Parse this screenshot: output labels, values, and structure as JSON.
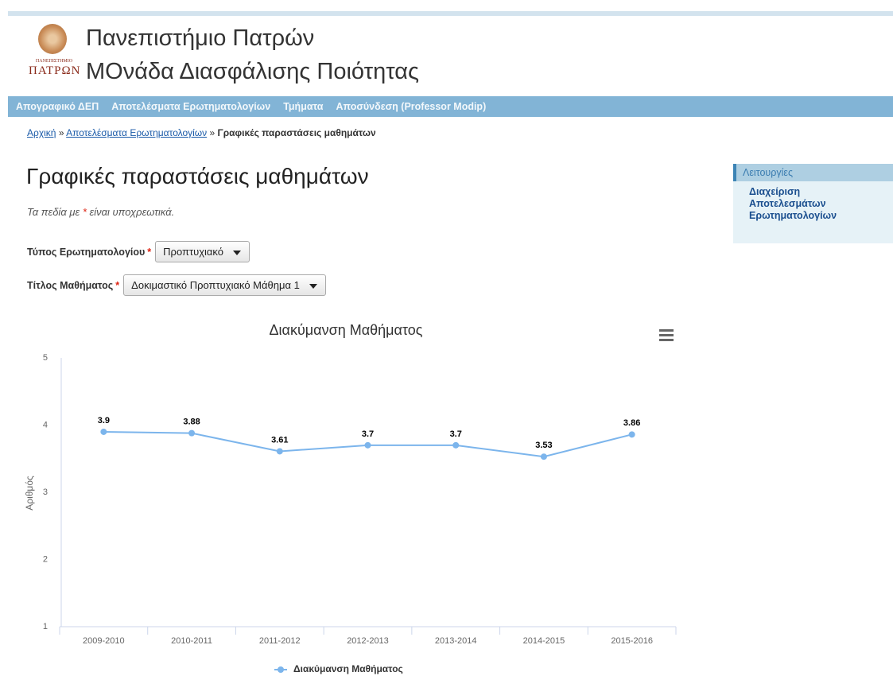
{
  "header": {
    "logo_lines": [
      "ΠΑΝΕΠΙΣΤΗΜΙΟ",
      "ΠΑΤΡΩΝ"
    ],
    "title_line1": "Πανεπιστήμιο Πατρών",
    "title_line2": "ΜΟνάδα Διασφάλισης Ποιότητας"
  },
  "nav": [
    "Απογραφικό ΔΕΠ",
    "Αποτελέσματα Ερωτηματολογίων",
    "Τμήματα",
    "Αποσύνδεση (Professor Modip)"
  ],
  "breadcrumb": {
    "links": [
      "Αρχική",
      "Αποτελέσματα Ερωτηματολογίων"
    ],
    "separator": "»",
    "current": "Γραφικές παραστάσεις μαθημάτων"
  },
  "page": {
    "heading": "Γραφικές παραστάσεις μαθημάτων",
    "note_before": "Τα πεδία με",
    "required_mark": "*",
    "note_after": "είναι υποχρεωτικά."
  },
  "form": {
    "fields": [
      {
        "label": "Τύπος Ερωτηματολογίου",
        "value": "Προπτυχιακό"
      },
      {
        "label": "Τίτλος Μαθήματος",
        "value": "Δοκιμαστικό Προπτυχιακό Μάθημα 1"
      }
    ]
  },
  "sidebar": {
    "title": "Λειτουργίες",
    "links": [
      "Διαχείριση Αποτελεσμάτων Ερωτηματολογίων"
    ]
  },
  "chart_data": {
    "type": "line",
    "title": "Διακύμανση Μαθήματος",
    "y_label": "Αριθμός",
    "categories": [
      "2009-2010",
      "2010-2011",
      "2011-2012",
      "2012-2013",
      "2013-2014",
      "2014-2015",
      "2015-2016"
    ],
    "series": [
      {
        "name": "Διακύμανση Μαθήματος",
        "color": "#7cb5ec",
        "values": [
          3.9,
          3.88,
          3.61,
          3.7,
          3.7,
          3.53,
          3.86
        ]
      }
    ],
    "ylim": [
      1,
      5
    ],
    "yticks": [
      1,
      2,
      3,
      4,
      5
    ],
    "grid": false,
    "legend": "bottom"
  }
}
